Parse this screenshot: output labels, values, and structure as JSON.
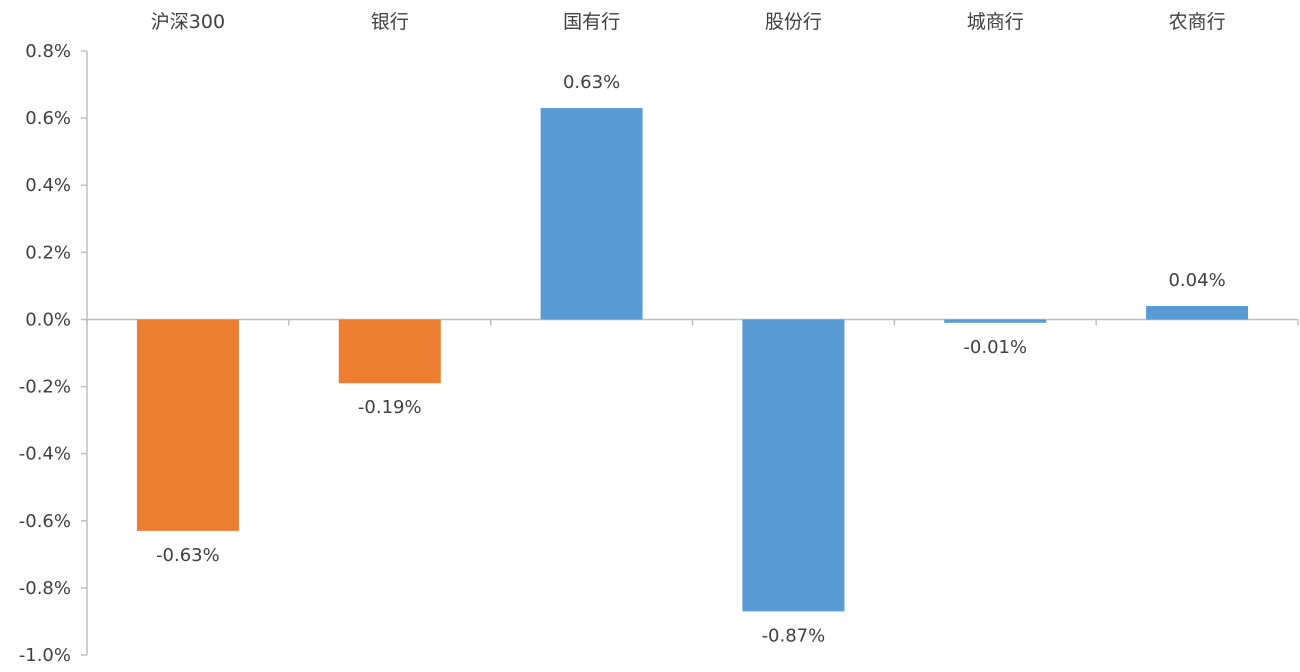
{
  "chart_data": {
    "type": "bar",
    "categories": [
      "沪深300",
      "银行",
      "国有行",
      "股份行",
      "城商行",
      "农商行"
    ],
    "values": [
      -0.63,
      -0.19,
      0.63,
      -0.87,
      -0.01,
      0.04
    ],
    "data_labels": [
      "-0.63%",
      "-0.19%",
      "0.63%",
      "-0.87%",
      "-0.01%",
      "0.04%"
    ],
    "bar_colors": [
      "#ED7D31",
      "#ED7D31",
      "#5B9BD5",
      "#5B9BD5",
      "#5B9BD5",
      "#5B9BD5"
    ],
    "ylim": [
      -1.0,
      0.8
    ],
    "yticks": [
      0.8,
      0.6,
      0.4,
      0.2,
      0.0,
      -0.2,
      -0.4,
      -0.6,
      -0.8,
      -1.0
    ],
    "ytick_labels": [
      "0.8%",
      "0.6%",
      "0.4%",
      "0.2%",
      "0.0%",
      "-0.2%",
      "-0.4%",
      "-0.6%",
      "-0.8%",
      "-1.0%"
    ],
    "category_axis_position": "top",
    "grid": false,
    "legend": "none",
    "axis_color": "#BFBFBF"
  }
}
